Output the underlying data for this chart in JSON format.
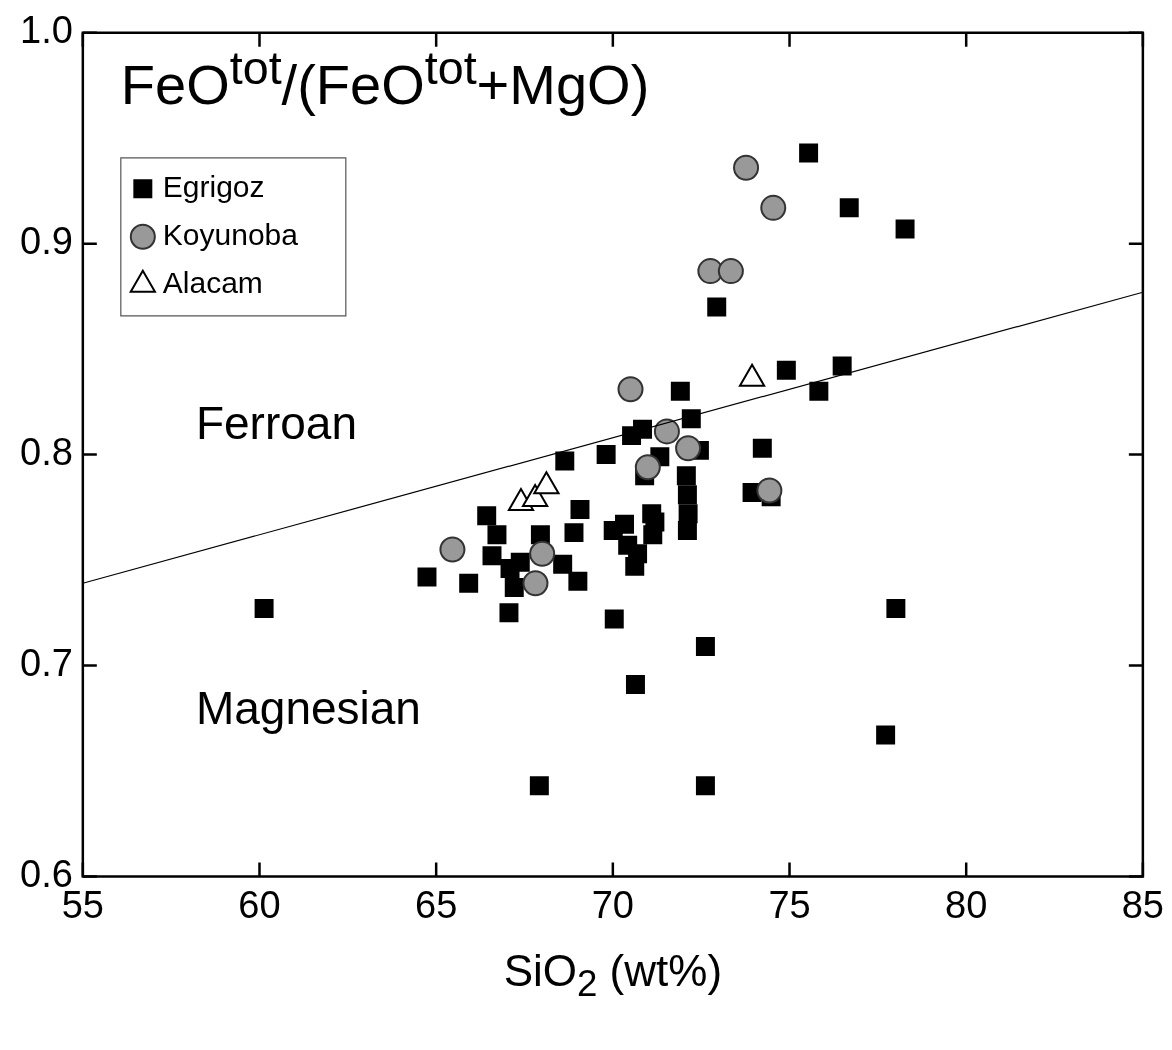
{
  "chart_data": {
    "type": "scatter",
    "title": "FeO$^{tot}$/(FeO$^{tot}$+MgO)",
    "xlabel": "SiO$_{2}$ (wt%)",
    "annotations": [
      "Ferroan",
      "Magnesian"
    ],
    "xlim": [
      55,
      85
    ],
    "xticks": [
      55,
      60,
      65,
      70,
      75,
      80,
      85
    ],
    "ylim": [
      0.6,
      1.0
    ],
    "yticks": [
      {
        "value": 0.6,
        "label": "0.6"
      },
      {
        "value": 0.7,
        "label": "0.7"
      },
      {
        "value": 0.8,
        "label": "0.8"
      },
      {
        "value": 0.9,
        "label": "0.9"
      },
      {
        "value": 1.0,
        "label": "1.0"
      }
    ],
    "grid": false,
    "legend": "top left",
    "series": [
      {
        "name": "Egrigoz",
        "color": "#000000",
        "marker": "square",
        "x": [
          75.54,
          76.69,
          78.27,
          72.94,
          74.91,
          76.49,
          75.83,
          71.91,
          72.22,
          70.84,
          70.53,
          72.45,
          69.81,
          68.64,
          71.33,
          70.9,
          72.08,
          74.23,
          73.94,
          74.48,
          72.11,
          72.13,
          72.11,
          66.43,
          69.07,
          66.72,
          67.95,
          68.9,
          70.33,
          70.01,
          71.1,
          71.19,
          71.13,
          70.42,
          70.7,
          70.62,
          66.58,
          67.38,
          67.09,
          68.58,
          64.74,
          65.92,
          67.21,
          69.01,
          67.06,
          70.04,
          60.13,
          78.01,
          72.62,
          70.64,
          77.72,
          67.92,
          72.62
        ],
        "values": [
          0.943,
          0.917,
          0.907,
          0.87,
          0.84,
          0.842,
          0.83,
          0.83,
          0.817,
          0.812,
          0.809,
          0.802,
          0.8,
          0.797,
          0.799,
          0.79,
          0.79,
          0.803,
          0.782,
          0.78,
          0.781,
          0.772,
          0.764,
          0.771,
          0.774,
          0.762,
          0.762,
          0.763,
          0.767,
          0.764,
          0.772,
          0.768,
          0.762,
          0.757,
          0.753,
          0.747,
          0.752,
          0.749,
          0.746,
          0.748,
          0.742,
          0.739,
          0.737,
          0.74,
          0.725,
          0.722,
          0.727,
          0.727,
          0.709,
          0.691,
          0.667,
          0.643,
          0.643
        ]
      },
      {
        "name": "Koyunoba",
        "color": "#999999",
        "marker": "circle",
        "x": [
          73.77,
          74.54,
          72.76,
          73.34,
          70.5,
          71.53,
          72.13,
          70.99,
          74.43,
          65.46,
          68.0,
          67.81
        ],
        "values": [
          0.936,
          0.917,
          0.887,
          0.887,
          0.831,
          0.811,
          0.803,
          0.794,
          0.783,
          0.755,
          0.753,
          0.739
        ]
      },
      {
        "name": "Alacam",
        "color": "#ffffff",
        "marker": "triangle",
        "x": [
          73.94,
          67.4,
          67.8,
          68.12
        ],
        "values": [
          0.836,
          0.777,
          0.779,
          0.785
        ]
      },
      {
        "type": "line",
        "color": "#000000",
        "marker": "none",
        "line_style": "solid",
        "x": [
          55,
          85
        ],
        "values": [
          0.739,
          0.877
        ]
      }
    ]
  }
}
